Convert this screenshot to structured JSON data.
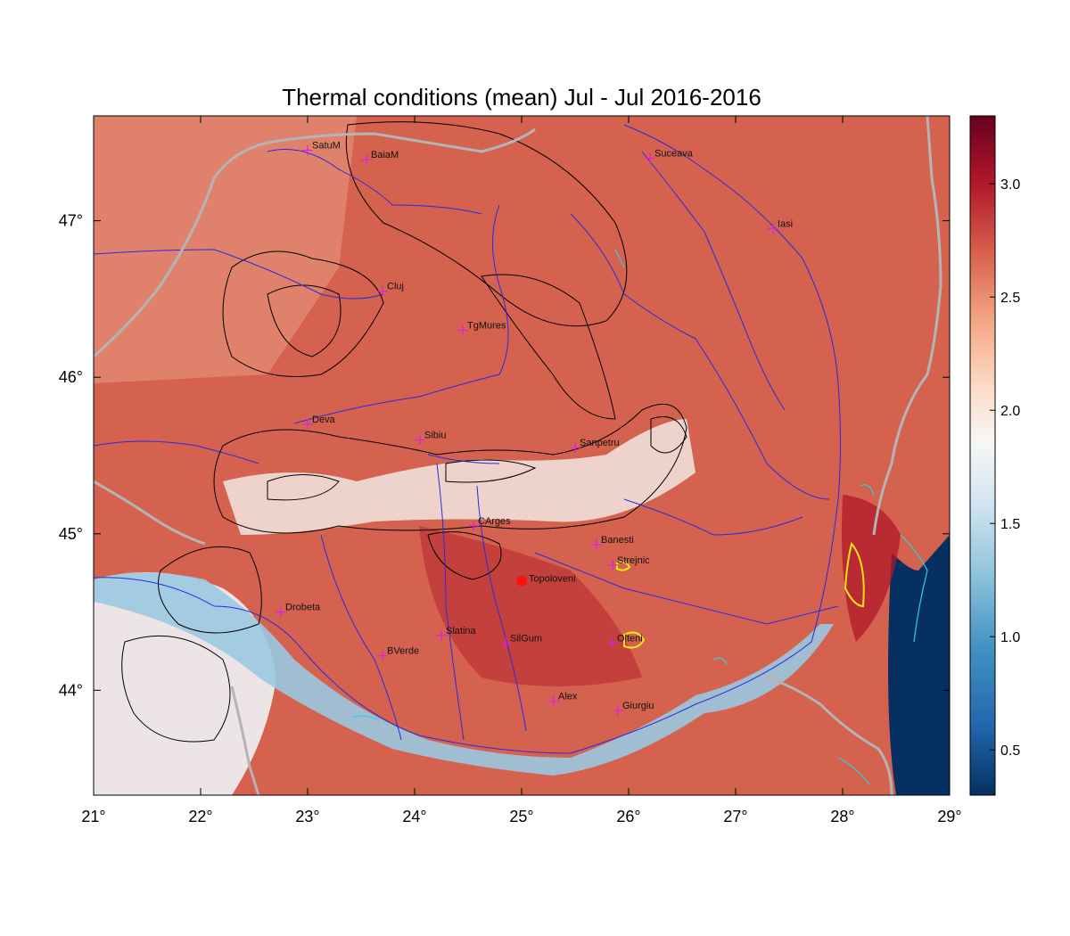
{
  "title": "Thermal conditions (mean) Jul - Jul  2016-2016",
  "x_ticks": [
    {
      "value": 21,
      "label": "21°"
    },
    {
      "value": 22,
      "label": "22°"
    },
    {
      "value": 23,
      "label": "23°"
    },
    {
      "value": 24,
      "label": "24°"
    },
    {
      "value": 25,
      "label": "25°"
    },
    {
      "value": 26,
      "label": "26°"
    },
    {
      "value": 27,
      "label": "27°"
    },
    {
      "value": 28,
      "label": "28°"
    },
    {
      "value": 29,
      "label": "29°"
    }
  ],
  "y_ticks": [
    {
      "value": 44,
      "label": "44°"
    },
    {
      "value": 45,
      "label": "45°"
    },
    {
      "value": 46,
      "label": "46°"
    },
    {
      "value": 47,
      "label": "47°"
    }
  ],
  "colorbar": {
    "ticks": [
      {
        "value": 0.5,
        "label": "0.5"
      },
      {
        "value": 1.0,
        "label": "1.0"
      },
      {
        "value": 1.5,
        "label": "1.5"
      },
      {
        "value": 2.0,
        "label": "2.0"
      },
      {
        "value": 2.5,
        "label": "2.5"
      },
      {
        "value": 3.0,
        "label": "3.0"
      }
    ],
    "range": [
      0.3,
      3.3
    ],
    "colors": [
      "#053061",
      "#2166ac",
      "#4393c3",
      "#92c5de",
      "#d1e5f0",
      "#f7f7f7",
      "#fddbc7",
      "#f4a582",
      "#d6604d",
      "#b2182b",
      "#67001f"
    ]
  },
  "map_extent": {
    "lon": [
      21,
      29
    ],
    "lat": [
      43.33,
      47.67
    ]
  },
  "cities": [
    {
      "name": "SatuM",
      "lon": 23.0,
      "lat": 47.45
    },
    {
      "name": "BaiaM",
      "lon": 23.55,
      "lat": 47.39
    },
    {
      "name": "Suceava",
      "lon": 26.2,
      "lat": 47.4
    },
    {
      "name": "Iasi",
      "lon": 27.35,
      "lat": 46.95
    },
    {
      "name": "Cluj",
      "lon": 23.7,
      "lat": 46.55
    },
    {
      "name": "TgMures",
      "lon": 24.45,
      "lat": 46.3
    },
    {
      "name": "Deva",
      "lon": 23.0,
      "lat": 45.7
    },
    {
      "name": "Sibiu",
      "lon": 24.05,
      "lat": 45.6
    },
    {
      "name": "Sanpetru",
      "lon": 25.5,
      "lat": 45.55
    },
    {
      "name": "CArges",
      "lon": 24.55,
      "lat": 45.05
    },
    {
      "name": "Banesti",
      "lon": 25.7,
      "lat": 44.93
    },
    {
      "name": "Strejnic",
      "lon": 25.85,
      "lat": 44.8
    },
    {
      "name": "Drobeta",
      "lon": 22.75,
      "lat": 44.5
    },
    {
      "name": "Slatina",
      "lon": 24.25,
      "lat": 44.35
    },
    {
      "name": "SilGum",
      "lon": 24.85,
      "lat": 44.3
    },
    {
      "name": "Olteni",
      "lon": 25.85,
      "lat": 44.3
    },
    {
      "name": "BVerde",
      "lon": 23.7,
      "lat": 44.22
    },
    {
      "name": "Alex",
      "lon": 25.3,
      "lat": 43.93
    },
    {
      "name": "Giurgiu",
      "lon": 25.9,
      "lat": 43.87
    }
  ],
  "highlight_station": {
    "name": "Topoloveni",
    "lon": 25.0,
    "lat": 44.7
  }
}
